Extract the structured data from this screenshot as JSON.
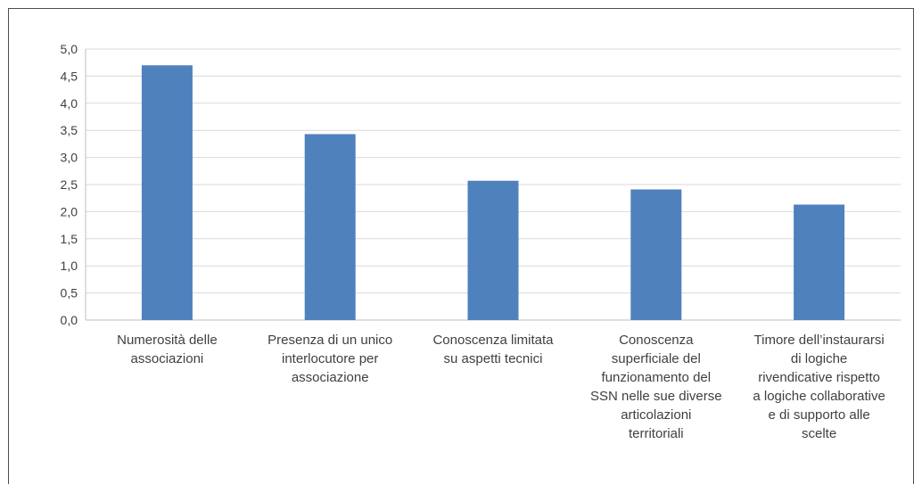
{
  "chart_data": {
    "type": "bar",
    "categories": [
      "Numerosità delle\nassociazioni",
      "Presenza di un unico\ninterlocutore per\nassociazione",
      "Conoscenza limitata\nsu aspetti tecnici",
      "Conoscenza\nsuperficiale del\nfunzionamento del\nSSN nelle sue diverse\narticolazioni\nterritoriali",
      "Timore dell’instaurarsi\ndi logiche\nrivendicative rispetto\na logiche collaborative\ne di supporto alle\nscelte"
    ],
    "values": [
      4.7,
      3.43,
      2.57,
      2.41,
      2.13
    ],
    "yticks": [
      "0,0",
      "0,5",
      "1,0",
      "1,5",
      "2,0",
      "2,5",
      "3,0",
      "3,5",
      "4,0",
      "4,5",
      "5,0"
    ],
    "ylim": [
      0,
      5
    ],
    "title": "",
    "xlabel": "",
    "ylabel": "",
    "bar_color": "#4f81bd",
    "grid_color": "#d9d9d9",
    "axis_color": "#bfbfbf",
    "grid": true,
    "legend": "none"
  }
}
